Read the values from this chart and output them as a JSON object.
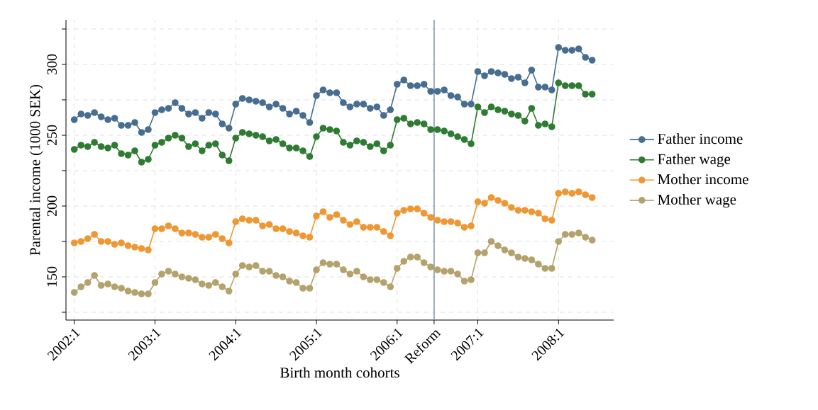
{
  "chart_data": {
    "type": "line",
    "xlabel": "Birth month cohorts",
    "ylabel": "Parental income (1000 SEK)",
    "x": [
      "2002-01",
      "2002-02",
      "2002-03",
      "2002-04",
      "2002-05",
      "2002-06",
      "2002-07",
      "2002-08",
      "2002-09",
      "2002-10",
      "2002-11",
      "2002-12",
      "2003-01",
      "2003-02",
      "2003-03",
      "2003-04",
      "2003-05",
      "2003-06",
      "2003-07",
      "2003-08",
      "2003-09",
      "2003-10",
      "2003-11",
      "2003-12",
      "2004-01",
      "2004-02",
      "2004-03",
      "2004-04",
      "2004-05",
      "2004-06",
      "2004-07",
      "2004-08",
      "2004-09",
      "2004-10",
      "2004-11",
      "2004-12",
      "2005-01",
      "2005-02",
      "2005-03",
      "2005-04",
      "2005-05",
      "2005-06",
      "2005-07",
      "2005-08",
      "2005-09",
      "2005-10",
      "2005-11",
      "2005-12",
      "2006-01",
      "2006-02",
      "2006-03",
      "2006-04",
      "2006-05",
      "2006-06",
      "2006-07",
      "2006-08",
      "2006-09",
      "2006-10",
      "2006-11",
      "2006-12",
      "2007-01",
      "2007-02",
      "2007-03",
      "2007-04",
      "2007-05",
      "2007-06",
      "2007-07",
      "2007-08",
      "2007-09",
      "2007-10",
      "2007-11",
      "2007-12",
      "2008-01",
      "2008-02",
      "2008-03",
      "2008-04",
      "2008-05",
      "2008-06"
    ],
    "series": [
      {
        "name": "Father income",
        "color": "#476d91",
        "values": [
          261,
          265,
          264,
          266,
          263,
          261,
          262,
          257,
          257,
          259,
          252,
          254,
          266,
          268,
          269,
          273,
          269,
          265,
          266,
          262,
          266,
          265,
          258,
          255,
          272,
          276,
          275,
          274,
          273,
          270,
          272,
          269,
          265,
          267,
          264,
          259,
          278,
          282,
          280,
          280,
          273,
          270,
          272,
          272,
          269,
          270,
          264,
          268,
          286,
          289,
          285,
          285,
          286,
          281,
          281,
          282,
          278,
          277,
          272,
          272,
          295,
          292,
          295,
          294,
          293,
          290,
          291,
          287,
          296,
          284,
          284,
          282,
          312,
          310,
          310,
          311,
          305,
          303
        ]
      },
      {
        "name": "Father wage",
        "color": "#2e7b32",
        "values": [
          240,
          243,
          242,
          245,
          242,
          241,
          243,
          237,
          236,
          239,
          231,
          233,
          243,
          245,
          248,
          250,
          248,
          242,
          244,
          239,
          243,
          244,
          236,
          232,
          248,
          252,
          251,
          250,
          249,
          246,
          247,
          244,
          241,
          241,
          239,
          235,
          249,
          255,
          254,
          253,
          245,
          243,
          246,
          245,
          242,
          244,
          239,
          243,
          261,
          262,
          258,
          259,
          258,
          254,
          254,
          253,
          251,
          249,
          247,
          244,
          270,
          266,
          270,
          268,
          267,
          265,
          264,
          260,
          269,
          257,
          258,
          256,
          287,
          285,
          285,
          285,
          279,
          279
        ]
      },
      {
        "name": "Mother income",
        "color": "#ee9733",
        "values": [
          174,
          175,
          177,
          180,
          175,
          175,
          173,
          174,
          172,
          171,
          170,
          169,
          184,
          184,
          186,
          184,
          181,
          181,
          180,
          178,
          178,
          180,
          177,
          174,
          189,
          191,
          190,
          190,
          186,
          187,
          184,
          184,
          182,
          181,
          179,
          178,
          193,
          196,
          192,
          194,
          190,
          187,
          189,
          185,
          185,
          185,
          182,
          179,
          195,
          197,
          198,
          198,
          195,
          192,
          190,
          189,
          189,
          188,
          185,
          186,
          203,
          202,
          206,
          204,
          202,
          199,
          197,
          197,
          196,
          195,
          191,
          190,
          209,
          210,
          209,
          210,
          208,
          206
        ]
      },
      {
        "name": "Mother wage",
        "color": "#b3a26c",
        "values": [
          139,
          143,
          146,
          151,
          144,
          145,
          143,
          142,
          140,
          139,
          138,
          138,
          146,
          152,
          154,
          152,
          150,
          149,
          148,
          145,
          144,
          146,
          143,
          140,
          152,
          158,
          157,
          158,
          154,
          154,
          151,
          150,
          147,
          146,
          142,
          142,
          155,
          160,
          159,
          159,
          155,
          152,
          154,
          150,
          148,
          148,
          146,
          143,
          156,
          161,
          164,
          164,
          160,
          157,
          155,
          154,
          154,
          152,
          147,
          148,
          167,
          167,
          175,
          172,
          169,
          167,
          164,
          163,
          162,
          159,
          156,
          156,
          175,
          180,
          180,
          181,
          178,
          176
        ]
      }
    ],
    "xlim": [
      "2001-11-24",
      "2008-09-07"
    ],
    "xticks": [
      {
        "value": "2002-01",
        "label": "2002:1"
      },
      {
        "value": "2003-01",
        "label": "2003:1"
      },
      {
        "value": "2004-01",
        "label": "2004:1"
      },
      {
        "value": "2005-01",
        "label": "2005:1"
      },
      {
        "value": "2006-01",
        "label": "2006:1"
      },
      {
        "value": "2006-06-16",
        "label": "Reform"
      },
      {
        "value": "2007-01",
        "label": "2007:1"
      },
      {
        "value": "2008-01",
        "label": "2008:1"
      }
    ],
    "ylim": [
      119.5,
      331.5
    ],
    "yticks": [
      {
        "value": 125,
        "label": null
      },
      150,
      {
        "value": 175,
        "label": null
      },
      200,
      {
        "value": 225,
        "label": null
      },
      250,
      {
        "value": 275,
        "label": null
      },
      300,
      {
        "value": 325,
        "label": null
      }
    ],
    "ref_lines": [
      {
        "axis": "x",
        "value": "2006-06-16",
        "color": "#7f96b0"
      }
    ],
    "grid": true,
    "legend": "right",
    "marker": "circle",
    "line_style": "solid"
  }
}
